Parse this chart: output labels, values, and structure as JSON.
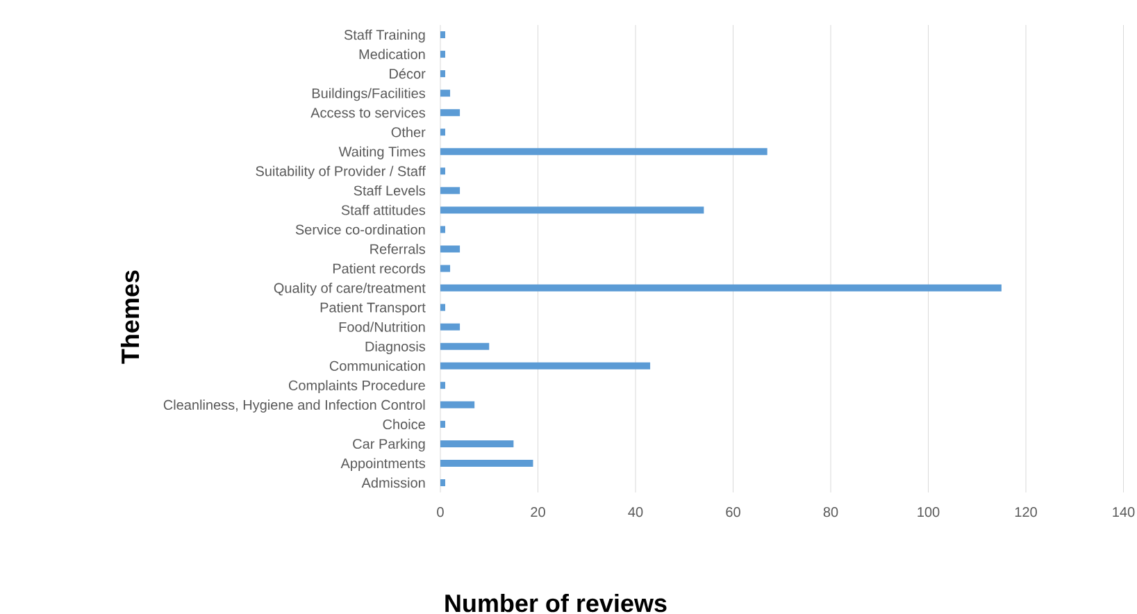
{
  "chart_data": {
    "type": "bar",
    "orientation": "horizontal",
    "xlabel": "Number of reviews",
    "ylabel": "Themes",
    "categories": [
      "Staff Training",
      "Medication",
      "Décor",
      "Buildings/Facilities",
      "Access to services",
      "Other",
      "Waiting Times",
      "Suitability of Provider / Staff",
      "Staff Levels",
      "Staff attitudes",
      "Service co-ordination",
      "Referrals",
      "Patient records",
      "Quality of care/treatment",
      "Patient Transport",
      "Food/Nutrition",
      "Diagnosis",
      "Communication",
      "Complaints Procedure",
      "Cleanliness, Hygiene and Infection Control",
      "Choice",
      "Car Parking",
      "Appointments",
      "Admission"
    ],
    "values": [
      1,
      1,
      1,
      2,
      4,
      1,
      67,
      1,
      4,
      54,
      1,
      4,
      2,
      115,
      1,
      4,
      10,
      43,
      1,
      7,
      1,
      15,
      19,
      1
    ],
    "color": "#5b9bd5",
    "xlim": [
      0,
      140
    ],
    "xticks": [
      0,
      20,
      40,
      60,
      80,
      100,
      120,
      140
    ],
    "grid": "x"
  }
}
